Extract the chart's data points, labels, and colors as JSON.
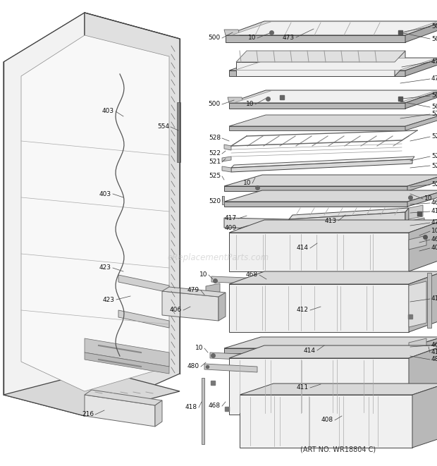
{
  "bg_color": "#ffffff",
  "fig_width": 6.2,
  "fig_height": 6.61,
  "art_no": "(ART NO. WR18804 C)",
  "watermark": "eReplacementParts.com",
  "line_color": "#444444",
  "fill_light": "#f0f0f0",
  "fill_mid": "#d8d8d8",
  "fill_dark": "#b8b8b8"
}
